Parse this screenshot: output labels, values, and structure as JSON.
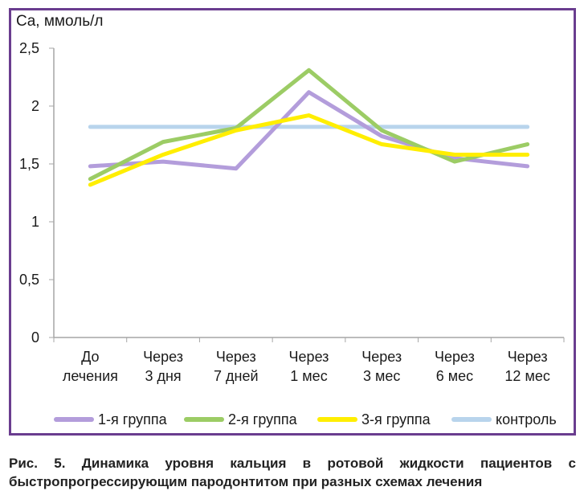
{
  "chart_data": {
    "type": "line",
    "ylabel": "Ca, ммоль/л",
    "ylim": [
      0,
      2.5
    ],
    "yticks": [
      "0",
      "0,5",
      "1",
      "1,5",
      "2",
      "2,5"
    ],
    "ytick_values": [
      0,
      0.5,
      1,
      1.5,
      2,
      2.5
    ],
    "categories": [
      [
        "До",
        "лечения"
      ],
      [
        "Через",
        "3 дня"
      ],
      [
        "Через",
        "7 дней"
      ],
      [
        "Через",
        "1 мес"
      ],
      [
        "Через",
        "3 мес"
      ],
      [
        "Через",
        "6 мес"
      ],
      [
        "Через",
        "12 мес"
      ]
    ],
    "series": [
      {
        "name": "1-я группа",
        "color": "#b39ddb",
        "values": [
          1.48,
          1.52,
          1.46,
          2.12,
          1.74,
          1.55,
          1.48
        ]
      },
      {
        "name": "2-я группа",
        "color": "#9ccc65",
        "values": [
          1.37,
          1.69,
          1.81,
          2.31,
          1.79,
          1.52,
          1.67
        ]
      },
      {
        "name": "3-я группа",
        "color": "#ffee00",
        "values": [
          1.32,
          1.58,
          1.79,
          1.92,
          1.67,
          1.58,
          1.58
        ]
      },
      {
        "name": "контроль",
        "color": "#b8d4ec",
        "values": [
          1.82,
          1.82,
          1.82,
          1.82,
          1.82,
          1.82,
          1.82
        ]
      }
    ],
    "grid": false,
    "legend_position": "bottom"
  },
  "caption": "Рис. 5. Динамика уровня кальция в ротовой жидкости пациентов с быстропрогрессирующим пародонтитом при разных схемах лечения"
}
